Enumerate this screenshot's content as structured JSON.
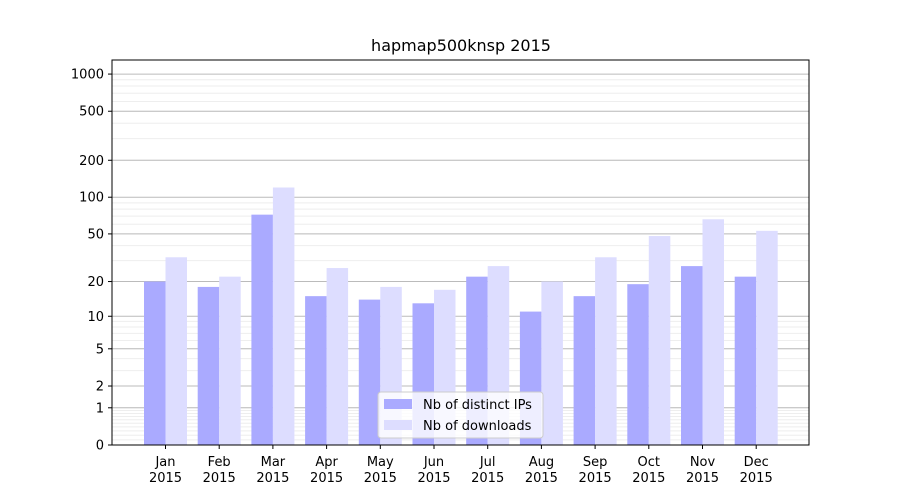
{
  "chart_data": {
    "type": "bar",
    "title": "hapmap500knsp 2015",
    "xlabel": "",
    "ylabel": "",
    "yscale": "symlog",
    "ylim": [
      0,
      1300
    ],
    "grid": true,
    "legend_position": "lower-center",
    "categories": [
      {
        "month": "Jan",
        "year": "2015"
      },
      {
        "month": "Feb",
        "year": "2015"
      },
      {
        "month": "Mar",
        "year": "2015"
      },
      {
        "month": "Apr",
        "year": "2015"
      },
      {
        "month": "May",
        "year": "2015"
      },
      {
        "month": "Jun",
        "year": "2015"
      },
      {
        "month": "Jul",
        "year": "2015"
      },
      {
        "month": "Aug",
        "year": "2015"
      },
      {
        "month": "Sep",
        "year": "2015"
      },
      {
        "month": "Oct",
        "year": "2015"
      },
      {
        "month": "Nov",
        "year": "2015"
      },
      {
        "month": "Dec",
        "year": "2015"
      }
    ],
    "y_ticks": [
      {
        "value": 0,
        "label": "0"
      },
      {
        "value": 1,
        "label": "1"
      },
      {
        "value": 2,
        "label": "2"
      },
      {
        "value": 5,
        "label": "5"
      },
      {
        "value": 10,
        "label": "10"
      },
      {
        "value": 20,
        "label": "20"
      },
      {
        "value": 50,
        "label": "50"
      },
      {
        "value": 100,
        "label": "100"
      },
      {
        "value": 200,
        "label": "200"
      },
      {
        "value": 500,
        "label": "500"
      },
      {
        "value": 1000,
        "label": "1000"
      }
    ],
    "series": [
      {
        "name": "Nb of distinct IPs",
        "color": "#aaaaff",
        "values": [
          20,
          18,
          72,
          15,
          14,
          13,
          22,
          11,
          15,
          19,
          27,
          22
        ]
      },
      {
        "name": "Nb of downloads",
        "color": "#ddddff",
        "values": [
          32,
          22,
          120,
          26,
          18,
          17,
          27,
          20,
          32,
          48,
          66,
          53
        ]
      }
    ]
  }
}
